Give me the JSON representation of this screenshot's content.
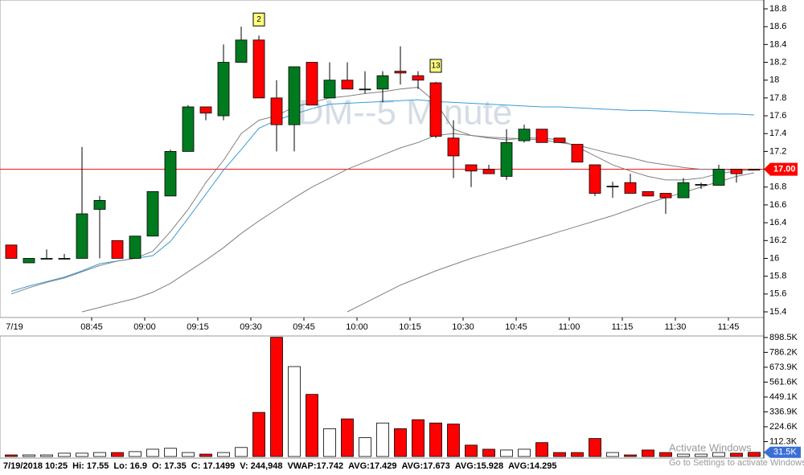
{
  "chart_data": {
    "type": "candlestick",
    "title": "DM--5 Minute",
    "categories": [
      "7/19",
      null,
      null,
      null,
      null,
      "08:45",
      null,
      null,
      "09:00",
      null,
      null,
      "09:15",
      null,
      null,
      "09:30",
      null,
      null,
      "09:45",
      null,
      null,
      "10:00",
      null,
      null,
      "10:15",
      null,
      null,
      "10:30",
      null,
      null,
      "10:45",
      null,
      null,
      "11:00",
      null,
      null,
      "11:15",
      null,
      null,
      "11:30",
      null,
      null,
      "11:45",
      null
    ],
    "open": [
      16.15,
      15.95,
      16.0,
      16.0,
      16.0,
      16.55,
      16.2,
      16.0,
      16.25,
      16.7,
      17.2,
      17.7,
      17.6,
      18.2,
      18.45,
      17.8,
      17.5,
      18.2,
      17.8,
      18.0,
      17.9,
      17.9,
      18.1,
      18.05,
      17.97,
      17.35,
      17.05,
      17.0,
      16.92,
      17.32,
      17.45,
      17.35,
      17.28,
      17.05,
      16.81,
      16.85,
      16.75,
      16.73,
      16.68,
      16.83,
      16.82,
      17.0,
      17.0
    ],
    "high": [
      16.15,
      16.0,
      16.1,
      16.05,
      17.25,
      16.7,
      16.2,
      16.25,
      16.75,
      17.22,
      17.72,
      17.7,
      18.4,
      18.6,
      18.5,
      18.0,
      18.15,
      18.2,
      18.2,
      18.2,
      18.1,
      18.1,
      18.38,
      18.1,
      17.98,
      17.55,
      17.05,
      17.05,
      17.45,
      17.5,
      17.45,
      17.35,
      17.28,
      17.05,
      16.86,
      16.95,
      16.75,
      16.73,
      16.9,
      16.85,
      17.05,
      17.0,
      17.0
    ],
    "low": [
      16.0,
      15.95,
      16.0,
      16.0,
      16.0,
      16.0,
      16.0,
      16.0,
      16.25,
      16.7,
      17.2,
      17.55,
      17.55,
      18.2,
      17.8,
      17.2,
      17.2,
      17.72,
      17.8,
      17.9,
      17.85,
      17.75,
      17.95,
      17.9,
      17.35,
      16.9,
      16.8,
      16.95,
      16.88,
      17.3,
      17.3,
      17.3,
      17.08,
      16.7,
      16.68,
      16.73,
      16.7,
      16.5,
      16.68,
      16.78,
      16.82,
      16.85,
      16.99
    ],
    "close": [
      16.0,
      16.0,
      16.0,
      16.0,
      16.5,
      16.65,
      16.0,
      16.25,
      16.75,
      17.2,
      17.7,
      17.63,
      18.2,
      18.45,
      17.8,
      17.5,
      18.15,
      17.72,
      18.0,
      17.9,
      17.9,
      18.05,
      18.08,
      18.0,
      17.37,
      17.1499,
      16.98,
      16.95,
      17.3,
      17.45,
      17.3,
      17.3,
      17.08,
      16.73,
      16.81,
      16.73,
      16.7,
      16.68,
      16.85,
      16.83,
      17.0,
      16.95,
      16.99
    ],
    "up_color": "#007a1f",
    "down_color": "#ff0000",
    "signals": [
      null,
      null,
      null,
      null,
      null,
      null,
      null,
      null,
      null,
      null,
      null,
      null,
      null,
      null,
      "2",
      null,
      null,
      null,
      null,
      null,
      null,
      null,
      null,
      null,
      "13",
      null,
      null,
      null,
      null,
      null,
      null,
      null,
      null,
      null,
      null,
      null,
      null,
      null,
      null,
      null,
      null,
      null,
      null
    ],
    "overlays": [
      {
        "color": "#3a9bd5",
        "values": [
          15.63,
          15.69,
          15.74,
          15.79,
          15.86,
          15.94,
          15.97,
          16.0,
          16.03,
          16.19,
          16.45,
          16.72,
          16.99,
          17.22,
          17.46,
          17.55,
          17.62,
          17.68,
          17.73,
          17.74,
          17.75,
          17.76,
          17.77,
          17.78,
          17.76,
          17.75,
          17.74,
          17.73,
          17.72,
          17.71,
          17.7,
          17.7,
          17.69,
          17.68,
          17.67,
          17.66,
          17.66,
          17.65,
          17.64,
          17.63,
          17.62,
          17.62,
          17.61
        ]
      },
      {
        "color": "#808080",
        "values": [
          15.6,
          15.67,
          15.73,
          15.78,
          15.85,
          15.92,
          15.97,
          16.0,
          16.08,
          16.3,
          16.55,
          16.85,
          17.1,
          17.4,
          17.55,
          17.6,
          17.7,
          17.75,
          17.8,
          17.82,
          17.85,
          17.87,
          17.9,
          17.92,
          17.75,
          17.45,
          17.38,
          17.35,
          17.33,
          17.35,
          17.35,
          17.33,
          17.25,
          17.15,
          17.05,
          16.98,
          16.92,
          16.88,
          16.88,
          16.9,
          16.95,
          16.98,
          17.0
        ]
      },
      {
        "color": "#808080",
        "values": [
          null,
          null,
          null,
          null,
          15.4,
          15.45,
          15.5,
          15.55,
          15.62,
          15.72,
          15.85,
          15.98,
          16.12,
          16.28,
          16.42,
          16.55,
          16.68,
          16.8,
          16.9,
          17.0,
          17.08,
          17.16,
          17.24,
          17.3,
          17.38,
          17.4,
          17.38,
          17.36,
          17.35,
          17.34,
          17.33,
          17.3,
          17.27,
          17.22,
          17.17,
          17.13,
          17.08,
          17.05,
          17.02,
          17.0,
          17.0,
          16.99,
          16.99
        ]
      },
      {
        "color": "#808080",
        "values": [
          null,
          null,
          null,
          null,
          null,
          null,
          null,
          null,
          null,
          null,
          null,
          null,
          null,
          null,
          null,
          null,
          null,
          null,
          null,
          15.4,
          15.5,
          15.6,
          15.7,
          15.78,
          15.86,
          15.93,
          16.0,
          16.06,
          16.12,
          16.18,
          16.24,
          16.3,
          16.36,
          16.42,
          16.48,
          16.55,
          16.62,
          16.68,
          16.74,
          16.8,
          16.86,
          16.92,
          16.96
        ]
      }
    ],
    "ylim": [
      15.4,
      18.8
    ],
    "yticks": [
      15.4,
      15.6,
      15.8,
      16,
      16.2,
      16.4,
      16.6,
      16.8,
      17.2,
      17.4,
      17.6,
      17.8,
      18,
      18.2,
      18.4,
      18.6,
      18.8
    ],
    "price_line": {
      "value": 17,
      "label": "17.00",
      "color": "#ff0000"
    },
    "volume": [
      12000,
      12000,
      12000,
      25000,
      25000,
      30000,
      30000,
      37000,
      55000,
      62000,
      30000,
      18000,
      30000,
      68000,
      333000,
      900000,
      679000,
      469000,
      210000,
      284000,
      142000,
      253000,
      210000,
      278000,
      253000,
      244948,
      86000,
      55000,
      49000,
      55000,
      105000,
      30000,
      30000,
      136000,
      30000,
      12000,
      49000,
      30000,
      18000,
      18000,
      30000,
      25000,
      31500
    ],
    "volume_ylim": [
      0,
      910000
    ],
    "volume_ticks": [
      {
        "value": 112300,
        "label": "112.3K"
      },
      {
        "value": 224600,
        "label": "224.6K"
      },
      {
        "value": 336900,
        "label": "336.9K"
      },
      {
        "value": 449100,
        "label": "449.1K"
      },
      {
        "value": 561600,
        "label": "561.6K"
      },
      {
        "value": 673900,
        "label": "673.9K"
      },
      {
        "value": 786200,
        "label": "786.2K"
      },
      {
        "value": 898500,
        "label": "898.5K"
      }
    ],
    "volume_tag": {
      "value": 31500,
      "label": "31.5K"
    },
    "status": [
      "7/19/2018 10:25",
      "Hi: 17.55",
      "Lo: 16.9",
      "O: 17.35",
      "C: 17.1499",
      "V: 244,948",
      "VWAP:17.742",
      "AVG:17.429",
      "AVG:17.673",
      "AVG:15.928",
      "AVG:14.295"
    ],
    "watermark": [
      "Activate Windows",
      "Go to Settings to activate Windows."
    ]
  }
}
